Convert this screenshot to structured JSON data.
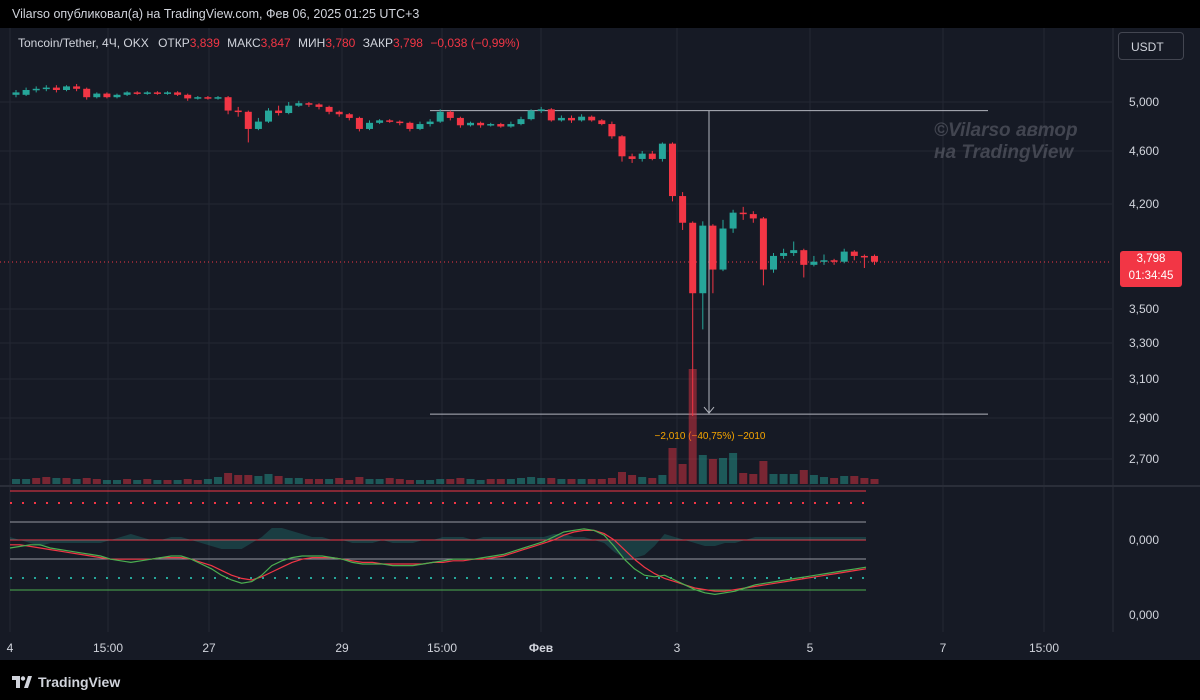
{
  "header": {
    "published_line": "Vilarso опубликовал(а) на TradingView.com, Фев 06, 2025 01:25 UTC+3"
  },
  "legend": {
    "symbol": "Toncoin/Tether, 4Ч, OKX",
    "open_label": "ОТКР",
    "open_value": "3,839",
    "high_label": "МАКС",
    "high_value": "3,847",
    "low_label": "МИН",
    "low_value": "3,780",
    "close_label": "ЗАКР",
    "close_value": "3,798",
    "change": "−0,038 (−0,99%)"
  },
  "currency_button": "USDT",
  "watermark": {
    "line1": "©Vilarso автор",
    "line2": "на TradingView"
  },
  "price_tag": {
    "price": "3,798",
    "countdown": "01:34:45"
  },
  "measure_label": "−2,010 (−40,75%) −2010",
  "footer": {
    "brand": "TradingView"
  },
  "colors": {
    "up": "#26a69a",
    "down": "#f23645",
    "background": "#161a25",
    "text": "#d1d4dc"
  },
  "chart_data": [
    {
      "type": "candlestick",
      "title": "Toncoin/Tether, 4Ч, OKX",
      "y_axis_ticks": [
        "5,000",
        "4,600",
        "4,200",
        "3,500",
        "3,300",
        "3,100",
        "2,900",
        "2,700"
      ],
      "y_tick_values": [
        5.0,
        4.6,
        4.2,
        3.5,
        3.3,
        3.1,
        2.9,
        2.7
      ],
      "x_axis_ticks": [
        "4",
        "15:00",
        "27",
        "29",
        "15:00",
        "Фев",
        "3",
        "5",
        "7",
        "15:00"
      ],
      "measure": {
        "from": 4.93,
        "to": 2.92,
        "delta": -2.01,
        "percent": -40.75
      },
      "last_price": 3.798,
      "candles": [
        [
          5.08,
          5.06,
          5.1,
          5.04,
          "up"
        ],
        [
          5.06,
          5.1,
          5.12,
          5.05,
          "up"
        ],
        [
          5.1,
          5.11,
          5.13,
          5.08,
          "up"
        ],
        [
          5.11,
          5.12,
          5.14,
          5.09,
          "up"
        ],
        [
          5.12,
          5.1,
          5.14,
          5.08,
          "down"
        ],
        [
          5.1,
          5.13,
          5.14,
          5.09,
          "up"
        ],
        [
          5.13,
          5.11,
          5.15,
          5.09,
          "down"
        ],
        [
          5.11,
          5.04,
          5.12,
          5.02,
          "down"
        ],
        [
          5.04,
          5.07,
          5.08,
          5.03,
          "up"
        ],
        [
          5.07,
          5.04,
          5.08,
          5.03,
          "down"
        ],
        [
          5.04,
          5.06,
          5.07,
          5.03,
          "up"
        ],
        [
          5.06,
          5.08,
          5.09,
          5.05,
          "up"
        ],
        [
          5.08,
          5.07,
          5.09,
          5.06,
          "down"
        ],
        [
          5.07,
          5.08,
          5.09,
          5.06,
          "up"
        ],
        [
          5.08,
          5.07,
          5.09,
          5.06,
          "down"
        ],
        [
          5.07,
          5.08,
          5.09,
          5.06,
          "up"
        ],
        [
          5.08,
          5.06,
          5.09,
          5.05,
          "down"
        ],
        [
          5.06,
          5.03,
          5.07,
          5.01,
          "down"
        ],
        [
          5.03,
          5.04,
          5.05,
          5.02,
          "up"
        ],
        [
          5.04,
          5.03,
          5.05,
          5.02,
          "down"
        ],
        [
          5.03,
          5.04,
          5.05,
          5.02,
          "up"
        ],
        [
          5.04,
          4.93,
          5.05,
          4.9,
          "down"
        ],
        [
          4.93,
          4.92,
          4.96,
          4.88,
          "down"
        ],
        [
          4.92,
          4.78,
          4.93,
          4.67,
          "down"
        ],
        [
          4.78,
          4.84,
          4.87,
          4.77,
          "up"
        ],
        [
          4.84,
          4.93,
          4.95,
          4.83,
          "up"
        ],
        [
          4.93,
          4.91,
          4.97,
          4.89,
          "down"
        ],
        [
          4.91,
          4.97,
          5.0,
          4.9,
          "up"
        ],
        [
          4.97,
          4.99,
          5.01,
          4.96,
          "up"
        ],
        [
          4.99,
          4.98,
          5.0,
          4.96,
          "down"
        ],
        [
          4.98,
          4.96,
          4.99,
          4.94,
          "down"
        ],
        [
          4.96,
          4.92,
          4.97,
          4.9,
          "down"
        ],
        [
          4.92,
          4.9,
          4.93,
          4.88,
          "down"
        ],
        [
          4.9,
          4.87,
          4.91,
          4.85,
          "down"
        ],
        [
          4.87,
          4.78,
          4.88,
          4.76,
          "down"
        ],
        [
          4.78,
          4.83,
          4.85,
          4.77,
          "up"
        ],
        [
          4.83,
          4.85,
          4.86,
          4.82,
          "up"
        ],
        [
          4.85,
          4.84,
          4.86,
          4.83,
          "down"
        ],
        [
          4.84,
          4.83,
          4.85,
          4.81,
          "down"
        ],
        [
          4.83,
          4.78,
          4.84,
          4.76,
          "down"
        ],
        [
          4.78,
          4.82,
          4.84,
          4.77,
          "up"
        ],
        [
          4.82,
          4.84,
          4.86,
          4.8,
          "up"
        ],
        [
          4.84,
          4.92,
          4.94,
          4.83,
          "up"
        ],
        [
          4.92,
          4.87,
          4.93,
          4.85,
          "down"
        ],
        [
          4.87,
          4.81,
          4.88,
          4.79,
          "down"
        ],
        [
          4.81,
          4.83,
          4.84,
          4.8,
          "up"
        ],
        [
          4.83,
          4.81,
          4.84,
          4.79,
          "down"
        ],
        [
          4.81,
          4.82,
          4.83,
          4.8,
          "up"
        ],
        [
          4.82,
          4.8,
          4.83,
          4.79,
          "down"
        ],
        [
          4.8,
          4.82,
          4.84,
          4.79,
          "up"
        ],
        [
          4.82,
          4.86,
          4.88,
          4.81,
          "up"
        ],
        [
          4.86,
          4.93,
          4.94,
          4.85,
          "up"
        ],
        [
          4.93,
          4.94,
          4.96,
          4.91,
          "up"
        ],
        [
          4.94,
          4.85,
          4.95,
          4.84,
          "down"
        ],
        [
          4.85,
          4.87,
          4.89,
          4.84,
          "up"
        ],
        [
          4.87,
          4.85,
          4.89,
          4.83,
          "down"
        ],
        [
          4.85,
          4.88,
          4.9,
          4.84,
          "up"
        ],
        [
          4.88,
          4.85,
          4.89,
          4.84,
          "down"
        ],
        [
          4.85,
          4.82,
          4.86,
          4.81,
          "down"
        ],
        [
          4.82,
          4.72,
          4.84,
          4.7,
          "down"
        ],
        [
          4.72,
          4.56,
          4.73,
          4.52,
          "down"
        ],
        [
          4.56,
          4.54,
          4.58,
          4.51,
          "down"
        ],
        [
          4.54,
          4.58,
          4.6,
          4.52,
          "up"
        ],
        [
          4.58,
          4.54,
          4.6,
          4.53,
          "down"
        ],
        [
          4.54,
          4.66,
          4.67,
          4.52,
          "up"
        ],
        [
          4.66,
          4.26,
          4.67,
          4.22,
          "down"
        ],
        [
          4.26,
          4.07,
          4.29,
          4.02,
          "down"
        ],
        [
          4.07,
          3.6,
          4.08,
          2.91,
          "down"
        ],
        [
          3.6,
          4.05,
          4.08,
          3.38,
          "up"
        ],
        [
          4.05,
          3.75,
          4.06,
          3.6,
          "down"
        ],
        [
          3.75,
          4.03,
          4.09,
          3.74,
          "up"
        ],
        [
          4.03,
          4.14,
          4.16,
          4.0,
          "up"
        ],
        [
          4.14,
          4.13,
          4.18,
          4.09,
          "down"
        ],
        [
          4.13,
          4.1,
          4.15,
          4.07,
          "down"
        ],
        [
          4.1,
          3.75,
          4.11,
          3.65,
          "down"
        ],
        [
          3.75,
          3.84,
          3.86,
          3.73,
          "up"
        ],
        [
          3.84,
          3.86,
          3.89,
          3.82,
          "up"
        ],
        [
          3.86,
          3.88,
          3.94,
          3.84,
          "up"
        ],
        [
          3.88,
          3.78,
          3.89,
          3.7,
          "down"
        ],
        [
          3.78,
          3.8,
          3.84,
          3.77,
          "up"
        ],
        [
          3.8,
          3.81,
          3.85,
          3.78,
          "up"
        ],
        [
          3.81,
          3.8,
          3.82,
          3.78,
          "down"
        ],
        [
          3.8,
          3.87,
          3.89,
          3.79,
          "up"
        ],
        [
          3.87,
          3.84,
          3.88,
          3.81,
          "down"
        ],
        [
          3.84,
          3.83,
          3.85,
          3.76,
          "down"
        ],
        [
          3.84,
          3.8,
          3.85,
          3.78,
          "down"
        ]
      ],
      "volumes": [
        [
          0.5,
          "up"
        ],
        [
          0.5,
          "up"
        ],
        [
          0.6,
          "down"
        ],
        [
          0.7,
          "down"
        ],
        [
          0.6,
          "up"
        ],
        [
          0.6,
          "down"
        ],
        [
          0.5,
          "up"
        ],
        [
          0.6,
          "down"
        ],
        [
          0.5,
          "down"
        ],
        [
          0.4,
          "up"
        ],
        [
          0.4,
          "up"
        ],
        [
          0.5,
          "down"
        ],
        [
          0.4,
          "up"
        ],
        [
          0.5,
          "down"
        ],
        [
          0.4,
          "up"
        ],
        [
          0.4,
          "down"
        ],
        [
          0.4,
          "up"
        ],
        [
          0.5,
          "down"
        ],
        [
          0.4,
          "down"
        ],
        [
          0.5,
          "up"
        ],
        [
          0.7,
          "up"
        ],
        [
          1.1,
          "down"
        ],
        [
          0.9,
          "down"
        ],
        [
          0.9,
          "down"
        ],
        [
          0.8,
          "up"
        ],
        [
          1.0,
          "up"
        ],
        [
          0.8,
          "down"
        ],
        [
          0.6,
          "up"
        ],
        [
          0.6,
          "up"
        ],
        [
          0.5,
          "down"
        ],
        [
          0.5,
          "down"
        ],
        [
          0.5,
          "up"
        ],
        [
          0.6,
          "down"
        ],
        [
          0.4,
          "down"
        ],
        [
          0.7,
          "down"
        ],
        [
          0.5,
          "up"
        ],
        [
          0.5,
          "up"
        ],
        [
          0.6,
          "down"
        ],
        [
          0.5,
          "down"
        ],
        [
          0.4,
          "down"
        ],
        [
          0.4,
          "up"
        ],
        [
          0.4,
          "up"
        ],
        [
          0.5,
          "up"
        ],
        [
          0.5,
          "down"
        ],
        [
          0.6,
          "down"
        ],
        [
          0.5,
          "up"
        ],
        [
          0.4,
          "up"
        ],
        [
          0.5,
          "down"
        ],
        [
          0.5,
          "down"
        ],
        [
          0.5,
          "up"
        ],
        [
          0.6,
          "up"
        ],
        [
          0.7,
          "up"
        ],
        [
          0.6,
          "up"
        ],
        [
          0.6,
          "down"
        ],
        [
          0.5,
          "up"
        ],
        [
          0.5,
          "down"
        ],
        [
          0.5,
          "up"
        ],
        [
          0.5,
          "down"
        ],
        [
          0.5,
          "down"
        ],
        [
          0.6,
          "down"
        ],
        [
          1.2,
          "down"
        ],
        [
          0.9,
          "down"
        ],
        [
          0.7,
          "up"
        ],
        [
          0.6,
          "down"
        ],
        [
          0.9,
          "up"
        ],
        [
          3.6,
          "down"
        ],
        [
          2.0,
          "down"
        ],
        [
          11.5,
          "down"
        ],
        [
          2.9,
          "up"
        ],
        [
          2.5,
          "down"
        ],
        [
          2.6,
          "up"
        ],
        [
          3.1,
          "up"
        ],
        [
          1.1,
          "down"
        ],
        [
          1.0,
          "down"
        ],
        [
          2.3,
          "down"
        ],
        [
          1.0,
          "up"
        ],
        [
          1.0,
          "up"
        ],
        [
          1.0,
          "up"
        ],
        [
          1.4,
          "down"
        ],
        [
          0.9,
          "up"
        ],
        [
          0.7,
          "up"
        ],
        [
          0.6,
          "down"
        ],
        [
          0.8,
          "up"
        ],
        [
          0.8,
          "down"
        ],
        [
          0.6,
          "down"
        ],
        [
          0.5,
          "down"
        ]
      ],
      "oscillator": {
        "zero_label": "0,000",
        "second_label": "0,000",
        "fast_line": [
          -5,
          -4,
          -3,
          -3,
          -5,
          -6,
          -7,
          -8,
          -9,
          -10,
          -12,
          -13,
          -14,
          -13,
          -12,
          -11,
          -10,
          -10,
          -12,
          -15,
          -18,
          -22,
          -25,
          -27,
          -26,
          -22,
          -16,
          -13,
          -11,
          -10,
          -10,
          -10,
          -11,
          -12,
          -14,
          -15,
          -15,
          -15,
          -16,
          -16,
          -16,
          -15,
          -14,
          -13,
          -12,
          -12,
          -12,
          -11,
          -10,
          -9,
          -7,
          -5,
          -3,
          -1,
          2,
          5,
          6,
          7,
          6,
          3,
          -4,
          -12,
          -18,
          -22,
          -23,
          -22,
          -25,
          -28,
          -31,
          -33,
          -34,
          -33,
          -32,
          -30,
          -28,
          -27,
          -26,
          -25,
          -24,
          -23,
          -22,
          -21,
          -20,
          -19,
          -18,
          -17
        ],
        "slow_line": [
          -3,
          -3,
          -4,
          -5,
          -6,
          -7,
          -8,
          -9,
          -10,
          -11,
          -12,
          -12,
          -12,
          -12,
          -12,
          -11,
          -11,
          -11,
          -12,
          -14,
          -16,
          -19,
          -22,
          -24,
          -25,
          -23,
          -20,
          -17,
          -14,
          -12,
          -11,
          -11,
          -11,
          -12,
          -13,
          -14,
          -14,
          -15,
          -15,
          -15,
          -15,
          -15,
          -14,
          -14,
          -13,
          -13,
          -12,
          -12,
          -11,
          -10,
          -8,
          -6,
          -4,
          -2,
          0,
          3,
          5,
          6,
          6,
          4,
          0,
          -6,
          -12,
          -17,
          -21,
          -24,
          -26,
          -28,
          -30,
          -31,
          -32,
          -32,
          -31,
          -30,
          -29,
          -28,
          -27,
          -26,
          -25,
          -24,
          -23,
          -22,
          -21,
          -20,
          -19,
          -18
        ],
        "histogram": [
          1,
          0,
          -1,
          -2,
          -1,
          -1,
          -1,
          -1,
          -1,
          -1,
          0,
          1,
          2,
          1,
          0,
          0,
          1,
          1,
          0,
          -1,
          -2,
          -3,
          -3,
          -3,
          -1,
          1,
          4,
          4,
          3,
          2,
          1,
          1,
          0,
          0,
          -1,
          -1,
          -1,
          0,
          -1,
          -1,
          -1,
          0,
          0,
          1,
          1,
          1,
          0,
          1,
          1,
          1,
          1,
          1,
          1,
          1,
          2,
          2,
          1,
          1,
          0,
          -1,
          -4,
          -6,
          -6,
          -5,
          -2,
          2,
          1,
          0,
          -1,
          -2,
          -2,
          -1,
          -1,
          0,
          1,
          1,
          1,
          1,
          1,
          1,
          1,
          1,
          1,
          1,
          1,
          1
        ]
      }
    }
  ]
}
